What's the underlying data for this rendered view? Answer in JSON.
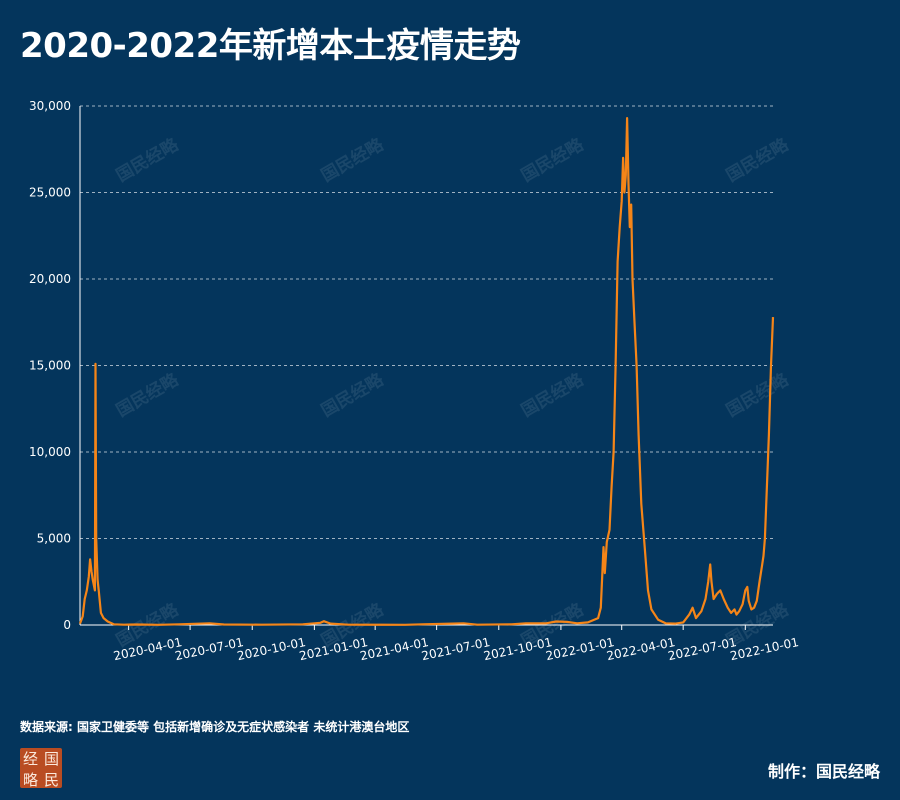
{
  "title": "2020-2022年新增本土疫情走势",
  "source": "数据来源: 国家卫健委等 包括新增确诊及无症状感染者 未统计港澳台地区",
  "credit": "制作：国民经略",
  "logo": {
    "chars": [
      "经",
      "国",
      "略",
      "民"
    ]
  },
  "watermark": "国民经略",
  "colors": {
    "background": "#04355c",
    "line": "#f58518",
    "grid": "#c8d2dc"
  },
  "chart_data": {
    "type": "line",
    "title": "2020-2022年新增本土疫情走势",
    "xlabel": "",
    "ylabel": "",
    "ylim": [
      0,
      30000
    ],
    "yticks": [
      0,
      5000,
      10000,
      15000,
      20000,
      25000,
      30000
    ],
    "ytick_labels": [
      "0",
      "5,000",
      "10,000",
      "15,000",
      "20,000",
      "25,000",
      "30,000"
    ],
    "xlim": [
      "2020-01-20",
      "2022-11-11"
    ],
    "xticks": [
      "2020-04-01",
      "2020-07-01",
      "2020-10-01",
      "2021-01-01",
      "2021-04-01",
      "2021-07-01",
      "2021-10-01",
      "2022-01-01",
      "2022-04-01",
      "2022-07-01",
      "2022-10-01"
    ],
    "grid": "horizontal dashed",
    "legend": "none",
    "series": [
      {
        "points": [
          [
            "2020-01-20",
            80
          ],
          [
            "2020-01-24",
            500
          ],
          [
            "2020-01-27",
            1500
          ],
          [
            "2020-01-30",
            2000
          ],
          [
            "2020-02-02",
            2800
          ],
          [
            "2020-02-04",
            3800
          ],
          [
            "2020-02-06",
            3100
          ],
          [
            "2020-02-08",
            2600
          ],
          [
            "2020-02-11",
            2000
          ],
          [
            "2020-02-12",
            15100
          ],
          [
            "2020-02-13",
            5000
          ],
          [
            "2020-02-15",
            2600
          ],
          [
            "2020-02-17",
            1900
          ],
          [
            "2020-02-20",
            700
          ],
          [
            "2020-02-24",
            400
          ],
          [
            "2020-03-01",
            200
          ],
          [
            "2020-03-10",
            40
          ],
          [
            "2020-03-25",
            20
          ],
          [
            "2020-04-15",
            30
          ],
          [
            "2020-05-15",
            10
          ],
          [
            "2020-06-15",
            40
          ],
          [
            "2020-07-30",
            100
          ],
          [
            "2020-08-20",
            30
          ],
          [
            "2020-10-15",
            20
          ],
          [
            "2020-12-15",
            40
          ],
          [
            "2021-01-10",
            130
          ],
          [
            "2021-01-15",
            220
          ],
          [
            "2021-01-25",
            80
          ],
          [
            "2021-02-20",
            15
          ],
          [
            "2021-05-15",
            10
          ],
          [
            "2021-06-10",
            40
          ],
          [
            "2021-07-25",
            80
          ],
          [
            "2021-08-10",
            100
          ],
          [
            "2021-08-30",
            20
          ],
          [
            "2021-10-20",
            40
          ],
          [
            "2021-11-10",
            90
          ],
          [
            "2021-12-10",
            100
          ],
          [
            "2021-12-25",
            200
          ],
          [
            "2022-01-10",
            180
          ],
          [
            "2022-01-25",
            100
          ],
          [
            "2022-02-10",
            150
          ],
          [
            "2022-02-25",
            400
          ],
          [
            "2022-03-01",
            1000
          ],
          [
            "2022-03-05",
            4500
          ],
          [
            "2022-03-07",
            3000
          ],
          [
            "2022-03-10",
            4800
          ],
          [
            "2022-03-14",
            5500
          ],
          [
            "2022-03-17",
            8000
          ],
          [
            "2022-03-20",
            10000
          ],
          [
            "2022-03-23",
            15000
          ],
          [
            "2022-03-26",
            21000
          ],
          [
            "2022-03-29",
            23000
          ],
          [
            "2022-04-01",
            24500
          ],
          [
            "2022-04-03",
            27000
          ],
          [
            "2022-04-05",
            25000
          ],
          [
            "2022-04-07",
            26000
          ],
          [
            "2022-04-09",
            29300
          ],
          [
            "2022-04-11",
            25500
          ],
          [
            "2022-04-13",
            23000
          ],
          [
            "2022-04-15",
            24300
          ],
          [
            "2022-04-17",
            20000
          ],
          [
            "2022-04-20",
            17500
          ],
          [
            "2022-04-23",
            15000
          ],
          [
            "2022-04-26",
            11000
          ],
          [
            "2022-04-30",
            7000
          ],
          [
            "2022-05-05",
            4500
          ],
          [
            "2022-05-10",
            2000
          ],
          [
            "2022-05-15",
            900
          ],
          [
            "2022-05-25",
            300
          ],
          [
            "2022-06-05",
            100
          ],
          [
            "2022-06-20",
            80
          ],
          [
            "2022-07-01",
            150
          ],
          [
            "2022-07-10",
            600
          ],
          [
            "2022-07-15",
            1000
          ],
          [
            "2022-07-20",
            400
          ],
          [
            "2022-07-28",
            800
          ],
          [
            "2022-08-03",
            1500
          ],
          [
            "2022-08-07",
            2500
          ],
          [
            "2022-08-10",
            3500
          ],
          [
            "2022-08-12",
            2500
          ],
          [
            "2022-08-15",
            1500
          ],
          [
            "2022-08-20",
            1800
          ],
          [
            "2022-08-25",
            2000
          ],
          [
            "2022-08-30",
            1500
          ],
          [
            "2022-09-05",
            1000
          ],
          [
            "2022-09-10",
            700
          ],
          [
            "2022-09-15",
            900
          ],
          [
            "2022-09-18",
            600
          ],
          [
            "2022-09-22",
            800
          ],
          [
            "2022-09-27",
            1200
          ],
          [
            "2022-10-01",
            2000
          ],
          [
            "2022-10-04",
            2200
          ],
          [
            "2022-10-06",
            1400
          ],
          [
            "2022-10-10",
            900
          ],
          [
            "2022-10-14",
            1000
          ],
          [
            "2022-10-18",
            1400
          ],
          [
            "2022-10-22",
            2500
          ],
          [
            "2022-10-26",
            3500
          ],
          [
            "2022-10-28",
            4000
          ],
          [
            "2022-10-30",
            5000
          ],
          [
            "2022-11-02",
            8000
          ],
          [
            "2022-11-05",
            11000
          ],
          [
            "2022-11-08",
            15000
          ],
          [
            "2022-11-11",
            17800
          ]
        ]
      }
    ]
  }
}
